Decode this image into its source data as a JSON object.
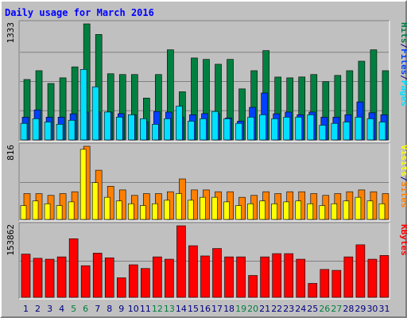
{
  "chart_data": {
    "type": "bar",
    "title": "Daily usage for March 2016",
    "colors": {
      "background": "#c0c0c0",
      "pages": "#00e0ff",
      "files": "#0040ff",
      "hits": "#008040",
      "visits": "#ffff00",
      "sites": "#ff8000",
      "kbytes": "#ff0000",
      "weekend_day": "#008040",
      "weekday_day": "#000080"
    },
    "days": [
      {
        "label": "1",
        "weekend": false
      },
      {
        "label": "2",
        "weekend": false
      },
      {
        "label": "3",
        "weekend": false
      },
      {
        "label": "4",
        "weekend": false
      },
      {
        "label": "5",
        "weekend": true
      },
      {
        "label": "6",
        "weekend": true
      },
      {
        "label": "7",
        "weekend": false
      },
      {
        "label": "8",
        "weekend": false
      },
      {
        "label": "9",
        "weekend": false
      },
      {
        "label": "10",
        "weekend": false
      },
      {
        "label": "11",
        "weekend": false
      },
      {
        "label": "12",
        "weekend": true
      },
      {
        "label": "13",
        "weekend": true
      },
      {
        "label": "14",
        "weekend": false
      },
      {
        "label": "15",
        "weekend": false
      },
      {
        "label": "16",
        "weekend": false
      },
      {
        "label": "17",
        "weekend": false
      },
      {
        "label": "18",
        "weekend": false
      },
      {
        "label": "19",
        "weekend": true
      },
      {
        "label": "20",
        "weekend": true
      },
      {
        "label": "21",
        "weekend": false
      },
      {
        "label": "22",
        "weekend": false
      },
      {
        "label": "23",
        "weekend": false
      },
      {
        "label": "24",
        "weekend": false
      },
      {
        "label": "25",
        "weekend": false
      },
      {
        "label": "26",
        "weekend": true
      },
      {
        "label": "27",
        "weekend": true
      },
      {
        "label": "28",
        "weekend": false
      },
      {
        "label": "29",
        "weekend": false
      },
      {
        "label": "30",
        "weekend": false
      },
      {
        "label": "31",
        "weekend": false
      }
    ],
    "panels": [
      {
        "id": "hits-files-pages",
        "max_label": "1333",
        "ymax": 1333,
        "legend": [
          {
            "text": "Hits",
            "color": "#008040"
          },
          {
            "text": "/",
            "color": "#000080"
          },
          {
            "text": "Files",
            "color": "#0040ff"
          },
          {
            "text": "/",
            "color": "#000080"
          },
          {
            "text": "Pages",
            "color": "#00e0ff"
          }
        ],
        "series": [
          {
            "name": "Hits",
            "color": "#008040",
            "values": [
              694,
              795,
              648,
              713,
              839,
              1333,
              1211,
              760,
              751,
              751,
              481,
              751,
              1035,
              553,
              941,
              925,
              869,
              925,
              586,
              795,
              1026,
              722,
              713,
              723,
              751,
              669,
              741,
              795,
              904,
              1035,
              795
            ]
          },
          {
            "name": "Files",
            "color": "#0040ff",
            "values": [
              262,
              345,
              262,
              262,
              300,
              320,
              320,
              320,
              302,
              289,
              209,
              327,
              320,
              262,
              289,
              302,
              302,
              253,
              216,
              374,
              539,
              300,
              320,
              289,
              320,
              262,
              262,
              289,
              437,
              312,
              289
            ]
          },
          {
            "name": "Pages",
            "color": "#00e0ff",
            "values": [
              190,
              244,
              206,
              180,
              226,
              810,
              610,
              320,
              262,
              289,
              244,
              180,
              244,
              388,
              216,
              244,
              327,
              244,
              190,
              262,
              289,
              244,
              262,
              262,
              289,
              169,
              190,
              206,
              262,
              244,
              206
            ]
          }
        ]
      },
      {
        "id": "sites-visits",
        "max_label": "816",
        "ymax": 816,
        "legend": [
          {
            "text": "Visits",
            "color": "#ffff00"
          },
          {
            "text": "/",
            "color": "#000080"
          },
          {
            "text": "Sites",
            "color": "#ff8000"
          }
        ],
        "series": [
          {
            "name": "Sites",
            "color": "#ff8000",
            "values": [
              288,
              288,
              268,
              288,
              309,
              816,
              549,
              370,
              329,
              268,
              288,
              288,
              309,
              452,
              329,
              329,
              309,
              309,
              247,
              268,
              309,
              288,
              309,
              309,
              288,
              268,
              288,
              309,
              329,
              309,
              288
            ]
          },
          {
            "name": "Visits",
            "color": "#ffff00",
            "values": [
              155,
              206,
              175,
              155,
              196,
              782,
              411,
              247,
              206,
              175,
              155,
              175,
              214,
              288,
              214,
              247,
              247,
              196,
              155,
              175,
              206,
              175,
              196,
              206,
              175,
              155,
              175,
              206,
              247,
              206,
              175
            ]
          }
        ]
      },
      {
        "id": "kbytes",
        "max_label": "153862",
        "ymax": 153862,
        "legend": [
          {
            "text": "KBytes",
            "color": "#ff0000"
          }
        ],
        "series": [
          {
            "name": "KBytes",
            "color": "#ff0000",
            "values": [
              93000,
              84000,
              82000,
              87000,
              126000,
              68000,
              95000,
              85000,
              42000,
              70000,
              62000,
              87000,
              82000,
              153862,
              111000,
              89000,
              105000,
              87000,
              87000,
              47000,
              87000,
              94000,
              94000,
              82000,
              30000,
              60000,
              58000,
              87000,
              113000,
              82000,
              90000
            ]
          }
        ]
      }
    ]
  }
}
